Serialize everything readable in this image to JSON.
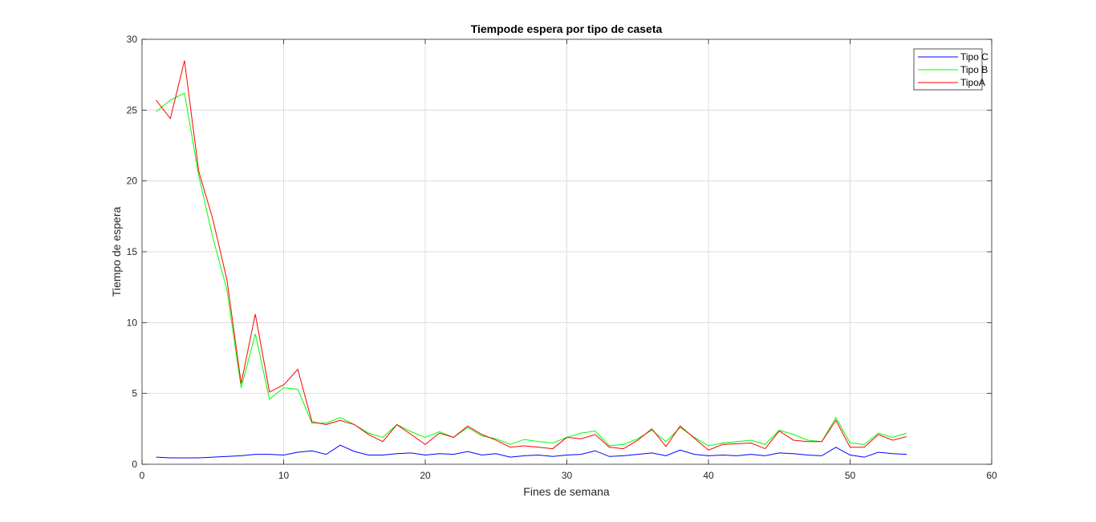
{
  "chart_data": {
    "type": "line",
    "title": "Tiempode espera por tipo de caseta",
    "xlabel": "Fines de semana",
    "ylabel": "Tiempo de espera",
    "xlim": [
      0,
      60
    ],
    "ylim": [
      0,
      30
    ],
    "xticks": [
      "0",
      "10",
      "20",
      "30",
      "40",
      "50",
      "60"
    ],
    "yticks": [
      "0",
      "5",
      "10",
      "15",
      "20",
      "25",
      "30"
    ],
    "grid": true,
    "legend_position": "top-right",
    "x": [
      1,
      2,
      3,
      4,
      5,
      6,
      7,
      8,
      9,
      10,
      11,
      12,
      13,
      14,
      15,
      16,
      17,
      18,
      19,
      20,
      21,
      22,
      23,
      24,
      25,
      26,
      27,
      28,
      29,
      30,
      31,
      32,
      33,
      34,
      35,
      36,
      37,
      38,
      39,
      40,
      41,
      42,
      43,
      44,
      45,
      46,
      47,
      48,
      49,
      50,
      51,
      52,
      53,
      54
    ],
    "series": [
      {
        "name": "Tipo C",
        "color": "#0000ff",
        "values": [
          0.5,
          0.45,
          0.45,
          0.45,
          0.5,
          0.55,
          0.6,
          0.7,
          0.7,
          0.65,
          0.85,
          0.95,
          0.7,
          1.35,
          0.9,
          0.65,
          0.65,
          0.75,
          0.8,
          0.65,
          0.75,
          0.7,
          0.9,
          0.65,
          0.75,
          0.5,
          0.6,
          0.65,
          0.55,
          0.65,
          0.7,
          0.95,
          0.55,
          0.6,
          0.7,
          0.8,
          0.6,
          1.0,
          0.7,
          0.6,
          0.65,
          0.6,
          0.7,
          0.6,
          0.8,
          0.75,
          0.65,
          0.6,
          1.2,
          0.65,
          0.5,
          0.85,
          0.75,
          0.7
        ]
      },
      {
        "name": "Tipo B",
        "color": "#00ff00",
        "values": [
          24.9,
          25.7,
          26.2,
          20.4,
          16.0,
          12.3,
          5.4,
          9.2,
          4.6,
          5.4,
          5.3,
          2.9,
          2.9,
          3.3,
          2.8,
          2.2,
          1.9,
          2.8,
          2.3,
          1.9,
          2.3,
          1.9,
          2.6,
          2.0,
          1.8,
          1.4,
          1.75,
          1.6,
          1.5,
          1.9,
          2.2,
          2.35,
          1.3,
          1.4,
          1.8,
          2.4,
          1.6,
          2.6,
          1.9,
          1.3,
          1.5,
          1.6,
          1.7,
          1.4,
          2.4,
          2.1,
          1.7,
          1.6,
          3.3,
          1.5,
          1.4,
          2.2,
          1.9,
          2.2
        ]
      },
      {
        "name": "TipoA",
        "color": "#ff0000",
        "values": [
          25.7,
          24.4,
          28.5,
          20.7,
          17.3,
          13.0,
          5.7,
          10.6,
          5.1,
          5.6,
          6.7,
          3.0,
          2.8,
          3.1,
          2.8,
          2.1,
          1.6,
          2.8,
          2.1,
          1.4,
          2.2,
          1.9,
          2.7,
          2.1,
          1.7,
          1.2,
          1.3,
          1.2,
          1.1,
          1.9,
          1.8,
          2.1,
          1.2,
          1.1,
          1.7,
          2.5,
          1.25,
          2.7,
          1.85,
          1.0,
          1.4,
          1.45,
          1.5,
          1.1,
          2.35,
          1.7,
          1.6,
          1.6,
          3.1,
          1.2,
          1.2,
          2.1,
          1.7,
          1.95
        ]
      }
    ]
  }
}
